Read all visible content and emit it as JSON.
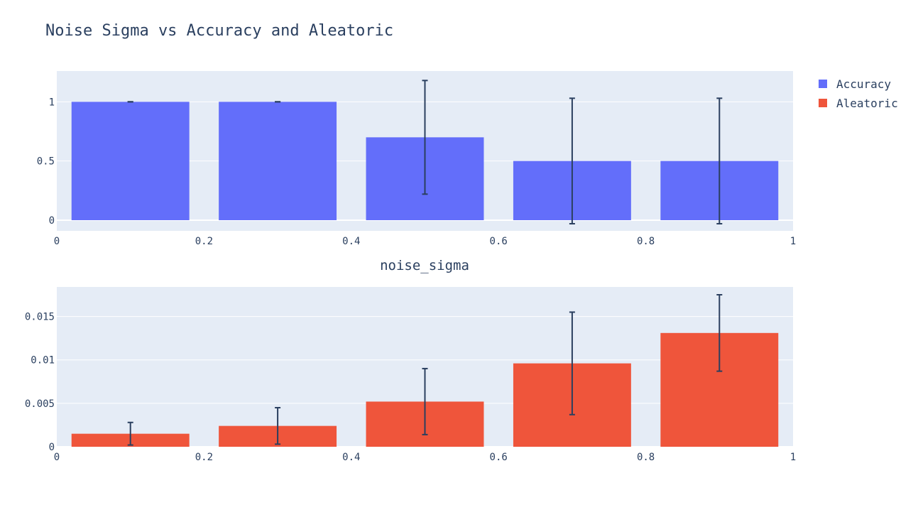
{
  "chart_data": {
    "type": "bar",
    "title": "Noise Sigma vs Accuracy and Aleatoric",
    "xlabel": "noise_sigma",
    "legend": {
      "placement": "top-right",
      "entries": [
        "Accuracy",
        "Aleatoric"
      ]
    },
    "colors": {
      "plot_bg": "#e5ecf6",
      "grid": "#ffffff",
      "error_bar": "#2a3f5f",
      "text": "#2a3f5f"
    },
    "x_ticks": [
      0,
      0.2,
      0.4,
      0.6,
      0.8,
      1
    ],
    "x_tick_labels": [
      "0",
      "0.2",
      "0.4",
      "0.6",
      "0.8",
      "1"
    ],
    "xlim": [
      0,
      1
    ],
    "bar_width": 0.16,
    "series": [
      {
        "name": "Accuracy",
        "color": "#636efa",
        "x": [
          0.1,
          0.3,
          0.5,
          0.7,
          0.9
        ],
        "values": [
          1.0,
          1.0,
          0.7,
          0.5,
          0.5
        ],
        "error": [
          0.0,
          0.0,
          0.48,
          0.53,
          0.53
        ],
        "ylim": [
          -0.09,
          1.26
        ],
        "y_ticks": [
          0,
          0.5,
          1
        ],
        "y_tick_labels": [
          "0",
          "0.5",
          "1"
        ]
      },
      {
        "name": "Aleatoric",
        "color": "#ef553b",
        "x": [
          0.1,
          0.3,
          0.5,
          0.7,
          0.9
        ],
        "values": [
          0.0015,
          0.0024,
          0.0052,
          0.0096,
          0.0131
        ],
        "error": [
          0.0013,
          0.0021,
          0.0038,
          0.0059,
          0.0044
        ],
        "ylim": [
          0,
          0.0184
        ],
        "y_ticks": [
          0,
          0.005,
          0.01,
          0.015
        ],
        "y_tick_labels": [
          "0",
          "0.005",
          "0.01",
          "0.015"
        ]
      }
    ]
  }
}
